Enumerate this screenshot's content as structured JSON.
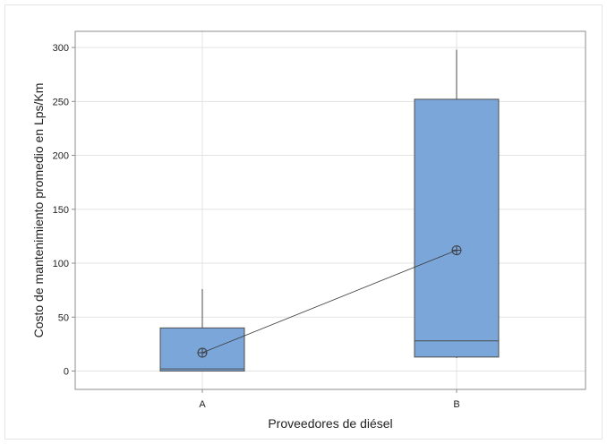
{
  "chart_data": {
    "type": "boxplot",
    "xlabel": "Proveedores de diésel",
    "ylabel": "Costo de mantenimiento promedio en Lps/Km",
    "ylim": [
      -17,
      315
    ],
    "yticks": [
      0,
      50,
      100,
      150,
      200,
      250,
      300
    ],
    "grid": true,
    "categories": [
      "A",
      "B"
    ],
    "boxes": [
      {
        "category": "A",
        "whisker_low": 0,
        "q1": 0,
        "median": 2,
        "q3": 40,
        "whisker_high": 76,
        "mean": 17
      },
      {
        "category": "B",
        "whisker_low": 12,
        "q1": 13,
        "median": 28,
        "q3": 252,
        "whisker_high": 298,
        "mean": 112
      }
    ],
    "mean_connect_line": true
  },
  "colors": {
    "box_fill": "#7BA6D9",
    "box_stroke": "#4D4D4D",
    "grid": "#E3E3E3",
    "axis": "#8C8C8C",
    "mean_line": "#3A3A3A"
  }
}
